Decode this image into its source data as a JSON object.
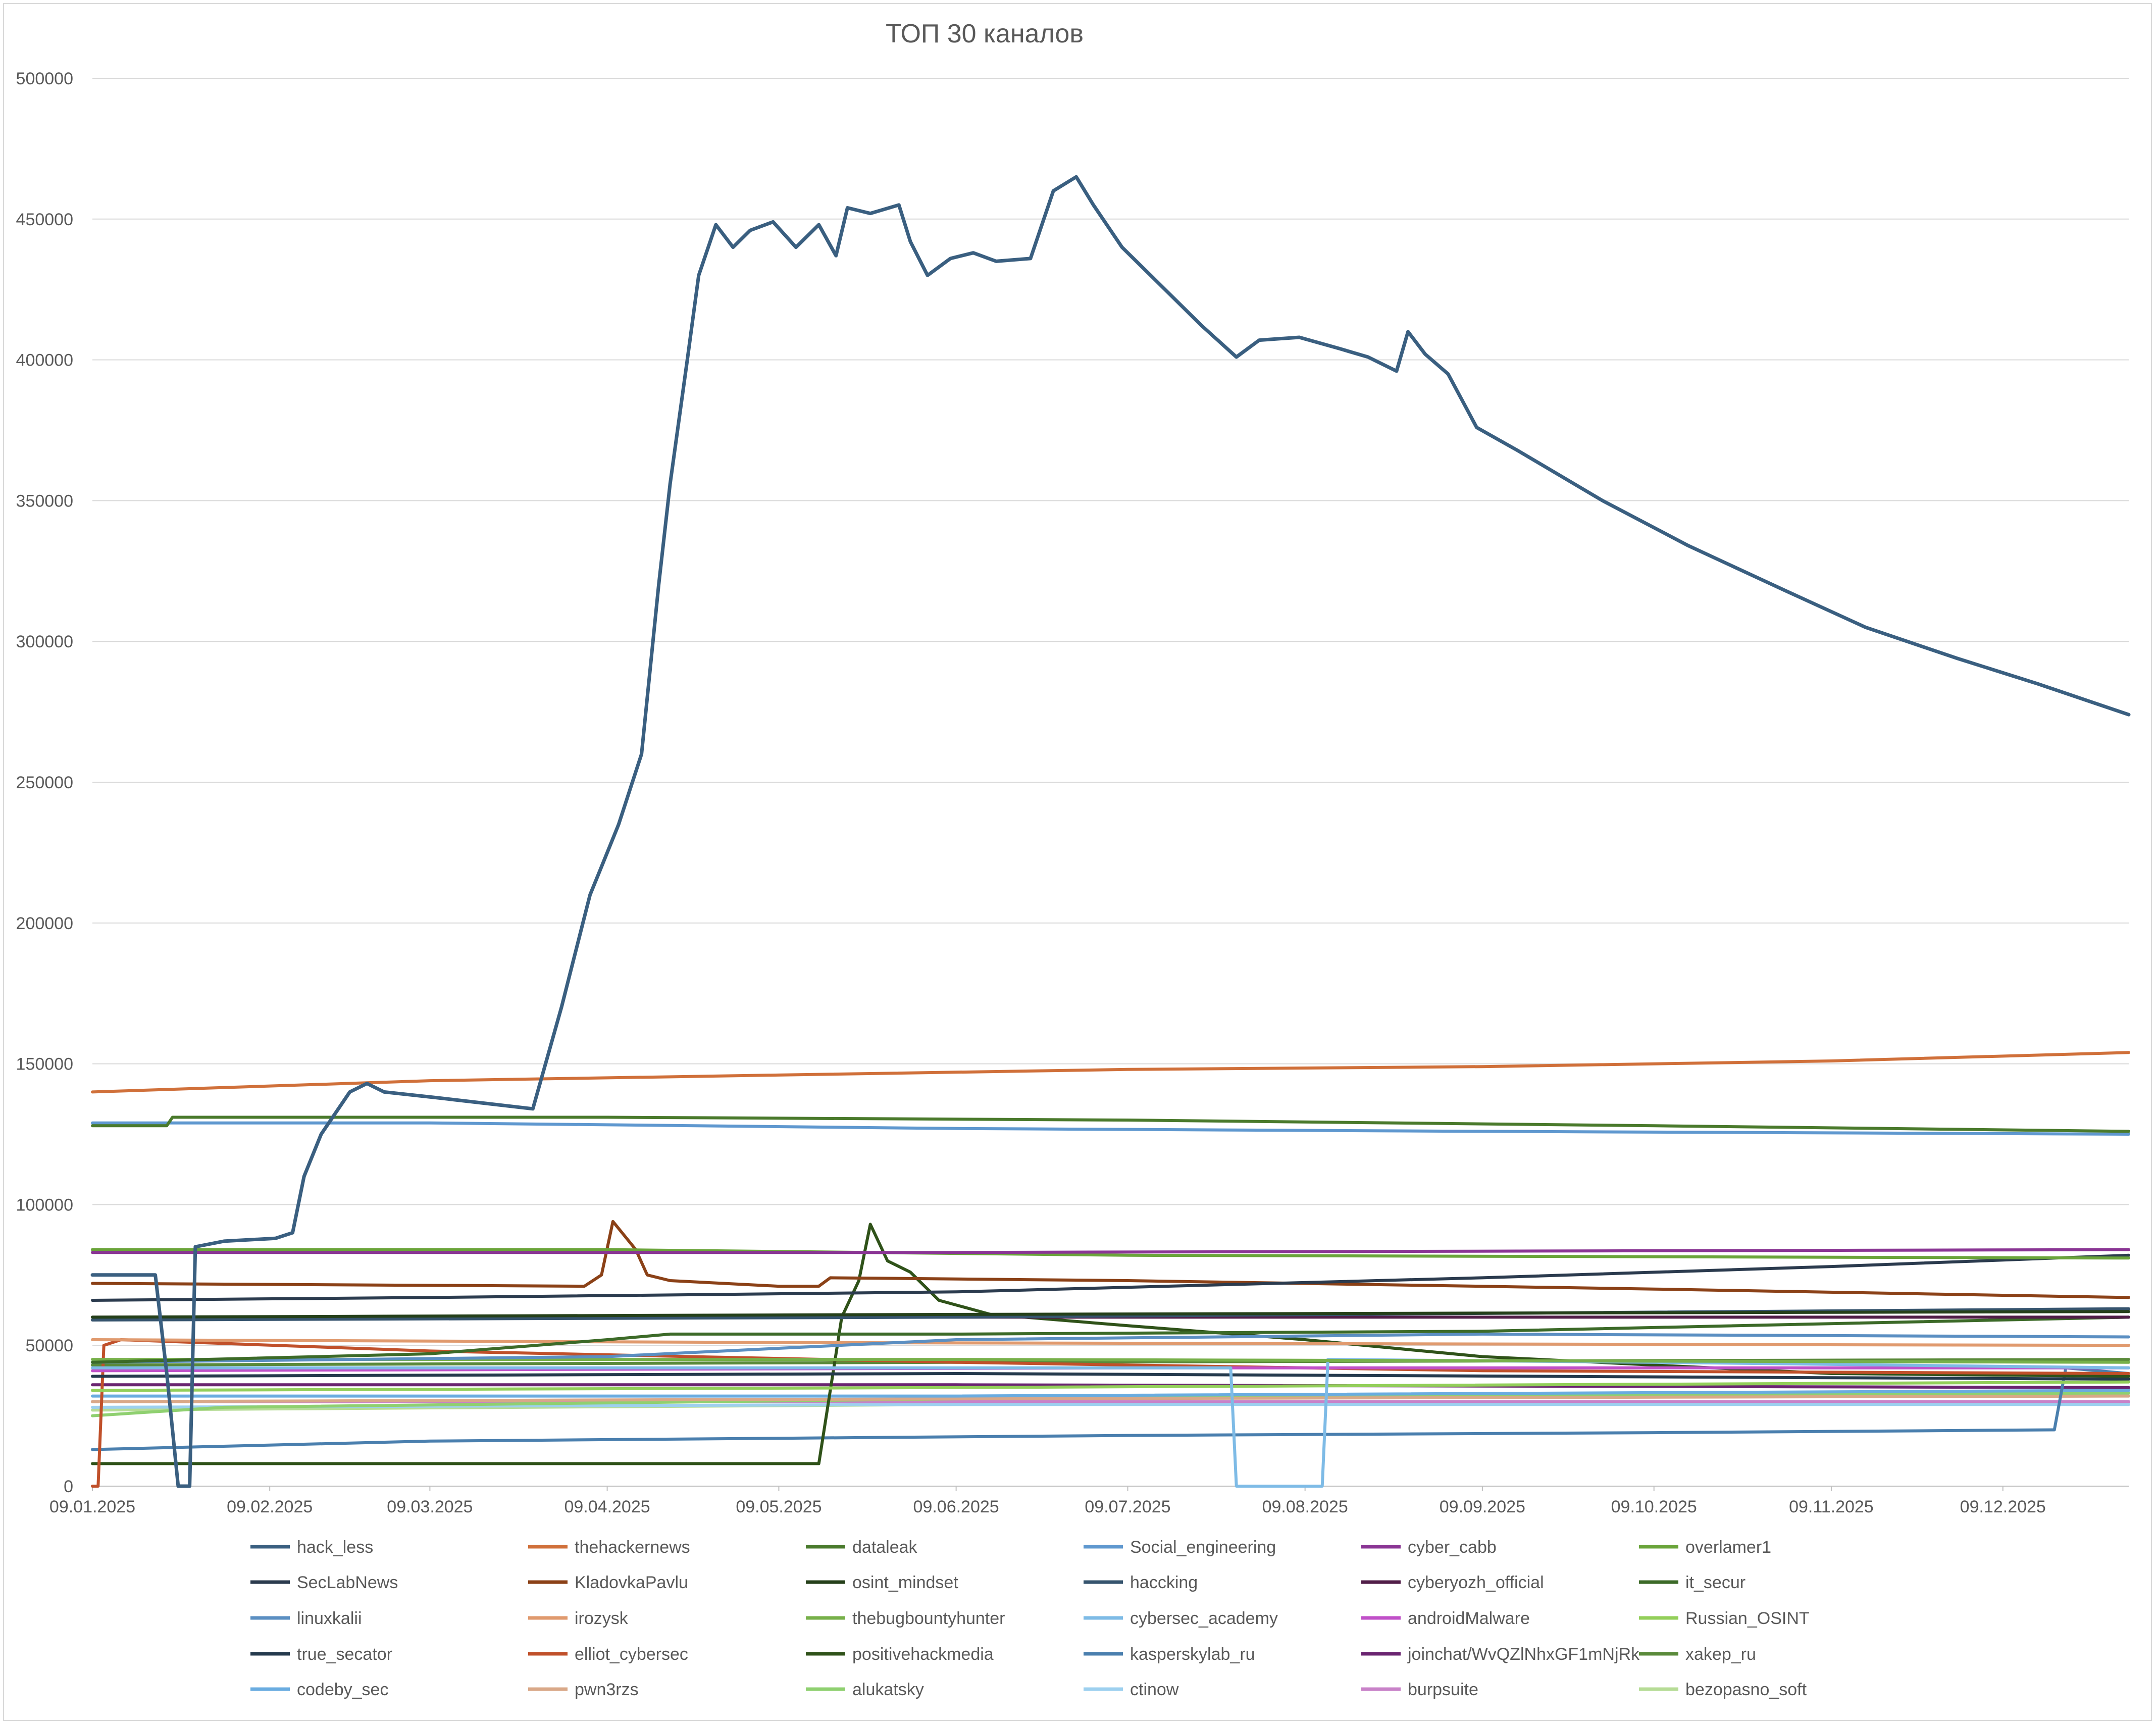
{
  "chart_data": {
    "type": "line",
    "title": "ТОП 30 каналов",
    "xlabel": "",
    "ylabel": "",
    "ylim": [
      0,
      500000
    ],
    "y_ticks": [
      0,
      50000,
      100000,
      150000,
      200000,
      250000,
      300000,
      350000,
      400000,
      450000,
      500000
    ],
    "y_tick_labels": [
      "0",
      "50000",
      "100000",
      "150000",
      "200000",
      "250000",
      "300000",
      "350000",
      "400000",
      "450000",
      "500000"
    ],
    "x_tick_labels": [
      "09.01.2025",
      "09.02.2025",
      "09.03.2025",
      "09.04.2025",
      "09.05.2025",
      "09.06.2025",
      "09.07.2025",
      "09.08.2025",
      "09.09.2025",
      "09.10.2025",
      "09.11.2025",
      "09.12.2025"
    ],
    "x_range": [
      "09.01.2025",
      "31.12.2025"
    ],
    "grid": "horizontal",
    "legend_position": "bottom",
    "series": [
      {
        "name": "hack_less",
        "color": "#3a5f80",
        "points": [
          [
            "09.01.2025",
            75000
          ],
          [
            "20.01.2025",
            75000
          ],
          [
            "22.01.2025",
            40000
          ],
          [
            "24.01.2025",
            0
          ],
          [
            "26.01.2025",
            0
          ],
          [
            "27.01.2025",
            85000
          ],
          [
            "01.02.2025",
            87000
          ],
          [
            "10.02.2025",
            88000
          ],
          [
            "13.02.2025",
            90000
          ],
          [
            "15.02.2025",
            110000
          ],
          [
            "18.02.2025",
            125000
          ],
          [
            "23.02.2025",
            140000
          ],
          [
            "26.02.2025",
            143000
          ],
          [
            "01.03.2025",
            140000
          ],
          [
            "10.03.2025",
            138000
          ],
          [
            "27.03.2025",
            134000
          ],
          [
            "01.04.2025",
            170000
          ],
          [
            "06.04.2025",
            210000
          ],
          [
            "08.04.2025",
            220000
          ],
          [
            "11.04.2025",
            235000
          ],
          [
            "15.04.2025",
            260000
          ],
          [
            "18.04.2025",
            320000
          ],
          [
            "20.04.2025",
            356000
          ],
          [
            "23.04.2025",
            400000
          ],
          [
            "25.04.2025",
            430000
          ],
          [
            "28.04.2025",
            448000
          ],
          [
            "01.05.2025",
            440000
          ],
          [
            "04.05.2025",
            446000
          ],
          [
            "08.05.2025",
            449000
          ],
          [
            "12.05.2025",
            440000
          ],
          [
            "16.05.2025",
            448000
          ],
          [
            "19.05.2025",
            437000
          ],
          [
            "21.05.2025",
            454000
          ],
          [
            "25.05.2025",
            452000
          ],
          [
            "30.05.2025",
            455000
          ],
          [
            "01.06.2025",
            442000
          ],
          [
            "04.06.2025",
            430000
          ],
          [
            "08.06.2025",
            436000
          ],
          [
            "12.06.2025",
            438000
          ],
          [
            "16.06.2025",
            435000
          ],
          [
            "22.06.2025",
            436000
          ],
          [
            "26.06.2025",
            460000
          ],
          [
            "30.06.2025",
            465000
          ],
          [
            "03.07.2025",
            455000
          ],
          [
            "08.07.2025",
            440000
          ],
          [
            "15.07.2025",
            426000
          ],
          [
            "22.07.2025",
            412000
          ],
          [
            "28.07.2025",
            401000
          ],
          [
            "01.08.2025",
            407000
          ],
          [
            "08.08.2025",
            408000
          ],
          [
            "15.08.2025",
            404000
          ],
          [
            "20.08.2025",
            401000
          ],
          [
            "25.08.2025",
            396000
          ],
          [
            "27.08.2025",
            410000
          ],
          [
            "30.08.2025",
            402000
          ],
          [
            "03.09.2025",
            395000
          ],
          [
            "08.09.2025",
            376000
          ],
          [
            "15.09.2025",
            368000
          ],
          [
            "30.09.2025",
            350000
          ],
          [
            "15.10.2025",
            334000
          ],
          [
            "01.11.2025",
            318000
          ],
          [
            "15.11.2025",
            305000
          ],
          [
            "01.12.2025",
            294000
          ],
          [
            "15.12.2025",
            285000
          ],
          [
            "31.12.2025",
            274000
          ]
        ]
      },
      {
        "name": "thehackernews",
        "color": "#d0703a",
        "points": [
          [
            "09.01.2025",
            140000
          ],
          [
            "09.03.2025",
            144000
          ],
          [
            "09.05.2025",
            146000
          ],
          [
            "09.07.2025",
            148000
          ],
          [
            "09.09.2025",
            149000
          ],
          [
            "09.11.2025",
            151000
          ],
          [
            "31.12.2025",
            154000
          ]
        ]
      },
      {
        "name": "dataleak",
        "color": "#4a7a2c",
        "points": [
          [
            "09.01.2025",
            128000
          ],
          [
            "22.01.2025",
            128000
          ],
          [
            "23.01.2025",
            131000
          ],
          [
            "09.04.2025",
            131000
          ],
          [
            "09.07.2025",
            130000
          ],
          [
            "09.10.2025",
            128000
          ],
          [
            "31.12.2025",
            126000
          ]
        ]
      },
      {
        "name": "Social_engineering",
        "color": "#5f98cf",
        "points": [
          [
            "09.01.2025",
            129000
          ],
          [
            "09.03.2025",
            129000
          ],
          [
            "09.06.2025",
            127000
          ],
          [
            "09.09.2025",
            126000
          ],
          [
            "31.12.2025",
            125000
          ]
        ]
      },
      {
        "name": "cyber_cabb",
        "color": "#8a3594",
        "points": [
          [
            "09.01.2025",
            83000
          ],
          [
            "09.06.2025",
            83000
          ],
          [
            "31.12.2025",
            84000
          ]
        ]
      },
      {
        "name": "overlamer1",
        "color": "#6aa43a",
        "points": [
          [
            "09.01.2025",
            84000
          ],
          [
            "09.04.2025",
            84000
          ],
          [
            "09.07.2025",
            82000
          ],
          [
            "31.12.2025",
            81000
          ]
        ]
      },
      {
        "name": "SecLabNews",
        "color": "#2b3b4e",
        "points": [
          [
            "09.01.2025",
            66000
          ],
          [
            "09.03.2025",
            67000
          ],
          [
            "09.06.2025",
            69000
          ],
          [
            "09.09.2025",
            74000
          ],
          [
            "09.11.2025",
            78000
          ],
          [
            "31.12.2025",
            82000
          ]
        ]
      },
      {
        "name": "KladovkaPavlu",
        "color": "#8b4117",
        "points": [
          [
            "09.01.2025",
            72000
          ],
          [
            "05.04.2025",
            71000
          ],
          [
            "08.04.2025",
            75000
          ],
          [
            "10.04.2025",
            94000
          ],
          [
            "14.04.2025",
            84000
          ],
          [
            "16.04.2025",
            75000
          ],
          [
            "20.04.2025",
            73000
          ],
          [
            "09.05.2025",
            71000
          ],
          [
            "16.05.2025",
            71000
          ],
          [
            "18.05.2025",
            74000
          ],
          [
            "09.07.2025",
            73000
          ],
          [
            "09.10.2025",
            70000
          ],
          [
            "31.12.2025",
            67000
          ]
        ]
      },
      {
        "name": "osint_mindset",
        "color": "#25401a",
        "points": [
          [
            "09.01.2025",
            60000
          ],
          [
            "09.06.2025",
            61000
          ],
          [
            "31.12.2025",
            62000
          ]
        ]
      },
      {
        "name": "haccking",
        "color": "#36546e",
        "points": [
          [
            "09.01.2025",
            59000
          ],
          [
            "09.06.2025",
            60000
          ],
          [
            "31.12.2025",
            63000
          ]
        ]
      },
      {
        "name": "cyberyozh_official",
        "color": "#511e48",
        "points": [
          [
            "09.01.2025",
            60000
          ],
          [
            "09.06.2025",
            60000
          ],
          [
            "31.12.2025",
            60000
          ]
        ]
      },
      {
        "name": "it_secur",
        "color": "#3c6a28",
        "points": [
          [
            "09.01.2025",
            44000
          ],
          [
            "09.03.2025",
            47000
          ],
          [
            "09.04.2025",
            52000
          ],
          [
            "20.04.2025",
            54000
          ],
          [
            "09.06.2025",
            54000
          ],
          [
            "09.09.2025",
            55000
          ],
          [
            "31.12.2025",
            60000
          ]
        ]
      },
      {
        "name": "linuxkalii",
        "color": "#5b8fc2",
        "points": [
          [
            "09.01.2025",
            44000
          ],
          [
            "09.04.2025",
            46000
          ],
          [
            "09.06.2025",
            52000
          ],
          [
            "09.09.2025",
            54000
          ],
          [
            "31.12.2025",
            53000
          ]
        ]
      },
      {
        "name": "irozysk",
        "color": "#e09a6e",
        "points": [
          [
            "09.01.2025",
            52000
          ],
          [
            "09.05.2025",
            51000
          ],
          [
            "31.12.2025",
            50000
          ]
        ]
      },
      {
        "name": "thebugbountyhunter",
        "color": "#77b04a",
        "points": [
          [
            "09.01.2025",
            45000
          ],
          [
            "09.06.2025",
            45000
          ],
          [
            "31.12.2025",
            44000
          ]
        ]
      },
      {
        "name": "cybersec_academy",
        "color": "#7ebbe6",
        "points": [
          [
            "09.01.2025",
            42000
          ],
          [
            "27.07.2025",
            42000
          ],
          [
            "28.07.2025",
            0
          ],
          [
            "12.08.2025",
            0
          ],
          [
            "13.08.2025",
            45000
          ],
          [
            "09.10.2025",
            44000
          ],
          [
            "31.12.2025",
            42000
          ]
        ]
      },
      {
        "name": "androidMalware",
        "color": "#c050c8",
        "points": [
          [
            "09.01.2025",
            41000
          ],
          [
            "09.07.2025",
            42000
          ],
          [
            "31.12.2025",
            42000
          ]
        ]
      },
      {
        "name": "Russian_OSINT",
        "color": "#93cf5a",
        "points": [
          [
            "09.01.2025",
            34000
          ],
          [
            "09.06.2025",
            35000
          ],
          [
            "31.12.2025",
            37000
          ]
        ]
      },
      {
        "name": "true_secator",
        "color": "#253a4d",
        "points": [
          [
            "09.01.2025",
            39000
          ],
          [
            "09.06.2025",
            40000
          ],
          [
            "31.12.2025",
            38000
          ]
        ]
      },
      {
        "name": "elliot_cybersec",
        "color": "#c0502a",
        "points": [
          [
            "09.01.2025",
            0
          ],
          [
            "10.01.2025",
            0
          ],
          [
            "11.01.2025",
            50000
          ],
          [
            "14.01.2025",
            52000
          ],
          [
            "09.03.2025",
            48000
          ],
          [
            "09.06.2025",
            44000
          ],
          [
            "09.09.2025",
            41000
          ],
          [
            "31.12.2025",
            40000
          ]
        ]
      },
      {
        "name": "positivehackmedia",
        "color": "#2f5219",
        "points": [
          [
            "09.01.2025",
            8000
          ],
          [
            "16.05.2025",
            8000
          ],
          [
            "20.05.2025",
            60000
          ],
          [
            "23.05.2025",
            73000
          ],
          [
            "25.05.2025",
            93000
          ],
          [
            "28.05.2025",
            80000
          ],
          [
            "01.06.2025",
            76000
          ],
          [
            "06.06.2025",
            66000
          ],
          [
            "15.06.2025",
            61000
          ],
          [
            "09.07.2025",
            57000
          ],
          [
            "09.08.2025",
            52000
          ],
          [
            "09.09.2025",
            46000
          ],
          [
            "09.10.2025",
            43000
          ],
          [
            "09.11.2025",
            40000
          ],
          [
            "31.12.2025",
            39000
          ]
        ]
      },
      {
        "name": "kasperskylab_ru",
        "color": "#4a7fae",
        "points": [
          [
            "09.01.2025",
            13000
          ],
          [
            "09.03.2025",
            16000
          ],
          [
            "09.05.2025",
            17000
          ],
          [
            "09.07.2025",
            18000
          ],
          [
            "09.10.2025",
            19000
          ],
          [
            "18.12.2025",
            20000
          ],
          [
            "20.12.2025",
            42000
          ],
          [
            "31.12.2025",
            40000
          ]
        ]
      },
      {
        "name": "joinchat/WvQZlNhxGF1mNjRk",
        "color": "#6a2470",
        "points": [
          [
            "09.01.2025",
            36000
          ],
          [
            "09.06.2025",
            36000
          ],
          [
            "31.12.2025",
            35000
          ]
        ]
      },
      {
        "name": "xakep_ru",
        "color": "#5a8a3a",
        "points": [
          [
            "09.01.2025",
            43000
          ],
          [
            "09.06.2025",
            44000
          ],
          [
            "31.12.2025",
            45000
          ]
        ]
      },
      {
        "name": "codeby_sec",
        "color": "#6aace0",
        "points": [
          [
            "09.01.2025",
            32000
          ],
          [
            "09.06.2025",
            32000
          ],
          [
            "31.12.2025",
            34000
          ]
        ]
      },
      {
        "name": "pwn3rzs",
        "color": "#d9a888",
        "points": [
          [
            "09.01.2025",
            30000
          ],
          [
            "09.06.2025",
            31000
          ],
          [
            "31.12.2025",
            32000
          ]
        ]
      },
      {
        "name": "alukatsky",
        "color": "#8fd070",
        "points": [
          [
            "09.01.2025",
            25000
          ],
          [
            "01.02.2025",
            28000
          ],
          [
            "09.06.2025",
            31000
          ],
          [
            "31.12.2025",
            33000
          ]
        ]
      },
      {
        "name": "ctinow",
        "color": "#9dd0ef",
        "points": [
          [
            "09.01.2025",
            28000
          ],
          [
            "09.06.2025",
            29000
          ],
          [
            "31.12.2025",
            29000
          ]
        ]
      },
      {
        "name": "burpsuite",
        "color": "#c882c8",
        "points": [
          [
            "09.01.2025",
            30000
          ],
          [
            "09.06.2025",
            30000
          ],
          [
            "31.12.2025",
            30000
          ]
        ]
      },
      {
        "name": "bezopasno_soft",
        "color": "#b6dc96",
        "points": [
          [
            "09.01.2025",
            27000
          ],
          [
            "09.06.2025",
            29000
          ],
          [
            "31.12.2025",
            30000
          ]
        ]
      }
    ]
  }
}
